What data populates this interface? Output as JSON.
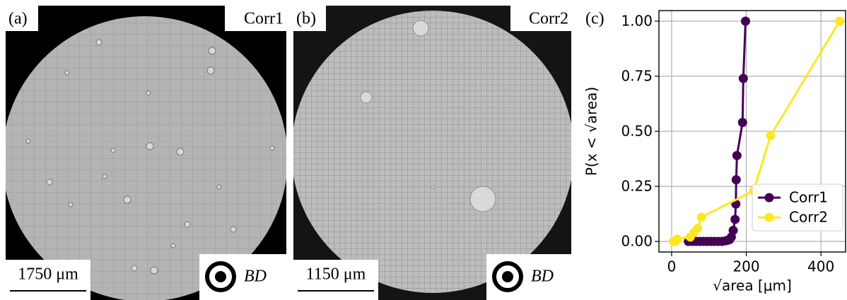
{
  "panels": [
    {
      "label": "(a)",
      "name": "Corr1",
      "scale_bar": "1750 μm",
      "direction": "BD"
    },
    {
      "label": "(b)",
      "name": "Corr2",
      "scale_bar": "1150 μm",
      "direction": "BD"
    }
  ],
  "chart_label": "(c)",
  "chart_data": {
    "type": "line",
    "xlabel": "√area [μm]",
    "ylabel": "P(x < √area)",
    "xlim": [
      -34,
      466
    ],
    "ylim": [
      -0.048,
      1.048
    ],
    "xticks": [
      0,
      200,
      400
    ],
    "yticks": [
      {
        "value": 0,
        "label": "0.00"
      },
      {
        "value": 0.25,
        "label": "0.25"
      },
      {
        "value": 0.5,
        "label": "0.50"
      },
      {
        "value": 0.75,
        "label": "0.75"
      },
      {
        "value": 1,
        "label": "1.00"
      }
    ],
    "grid": true,
    "legend": "lower right",
    "series": [
      {
        "name": "Corr1",
        "color": "#440154",
        "x": [
          45,
          55,
          65,
          75,
          85,
          95,
          105,
          115,
          125,
          135,
          145,
          150,
          155,
          160,
          165,
          170,
          172,
          173,
          175,
          190,
          192,
          198
        ],
        "values": [
          0,
          0,
          0,
          0,
          0,
          0,
          0,
          0,
          0,
          0,
          0.003,
          0.005,
          0.008,
          0.02,
          0.05,
          0.1,
          0.17,
          0.28,
          0.39,
          0.54,
          0.74,
          1.0
        ]
      },
      {
        "name": "Corr2",
        "color": "#fde725",
        "x": [
          5,
          8,
          10,
          12,
          15,
          50,
          60,
          70,
          80,
          220,
          265,
          450
        ],
        "values": [
          0,
          0,
          0,
          0.005,
          0.01,
          0.02,
          0.04,
          0.06,
          0.11,
          0.23,
          0.48,
          1.0
        ]
      }
    ]
  }
}
